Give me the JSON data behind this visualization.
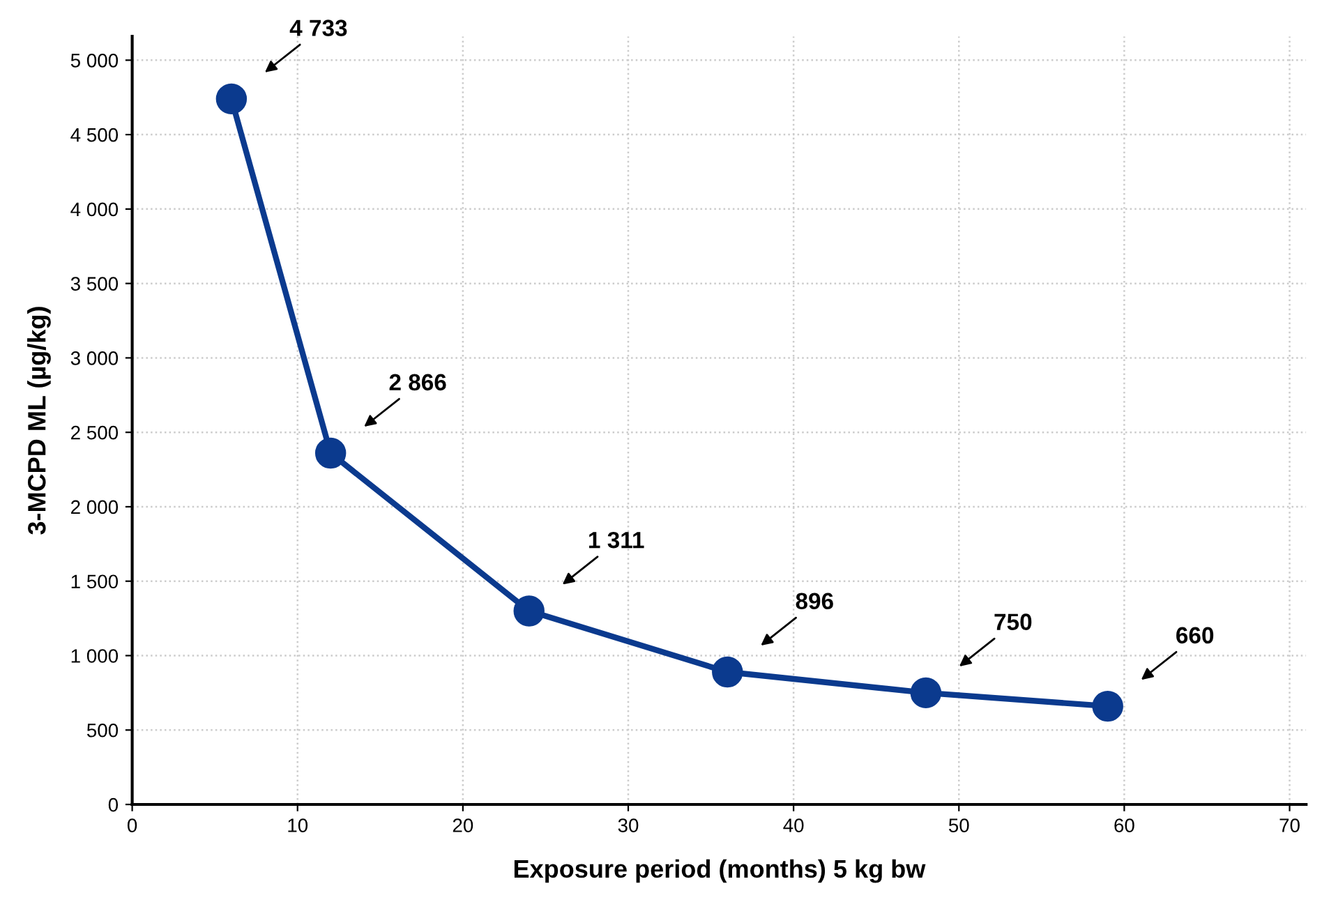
{
  "chart_data": {
    "type": "line",
    "xlabel": "Exposure period (months) 5 kg bw",
    "ylabel": "3-MCPD ML (µg/kg)",
    "x": [
      6,
      12,
      24,
      36,
      48,
      59
    ],
    "series": [
      {
        "color": "#0b3a8e",
        "values": [
          4740,
          2360,
          1300,
          890,
          750,
          660
        ]
      }
    ],
    "marker": "circle",
    "line_style": "solid",
    "grid": true,
    "xlim": [
      0,
      71
    ],
    "xticks": [
      0,
      10,
      20,
      30,
      40,
      50,
      60,
      70
    ],
    "ylim": [
      0,
      5160
    ],
    "yticks": [
      0,
      500,
      {
        "value": 1000,
        "label": "1 000"
      },
      {
        "value": 1500,
        "label": "1 500"
      },
      {
        "value": 2000,
        "label": "2 000"
      },
      {
        "value": 2500,
        "label": "2 500"
      },
      {
        "value": 3000,
        "label": "3 000"
      },
      {
        "value": 3500,
        "label": "3 500"
      },
      {
        "value": 4000,
        "label": "4 000"
      },
      {
        "value": 4500,
        "label": "4 500"
      },
      {
        "value": 5000,
        "label": "5 000"
      }
    ],
    "annotations": [
      "4 733",
      "2 866",
      "1 311",
      "896",
      "750",
      "660"
    ]
  }
}
